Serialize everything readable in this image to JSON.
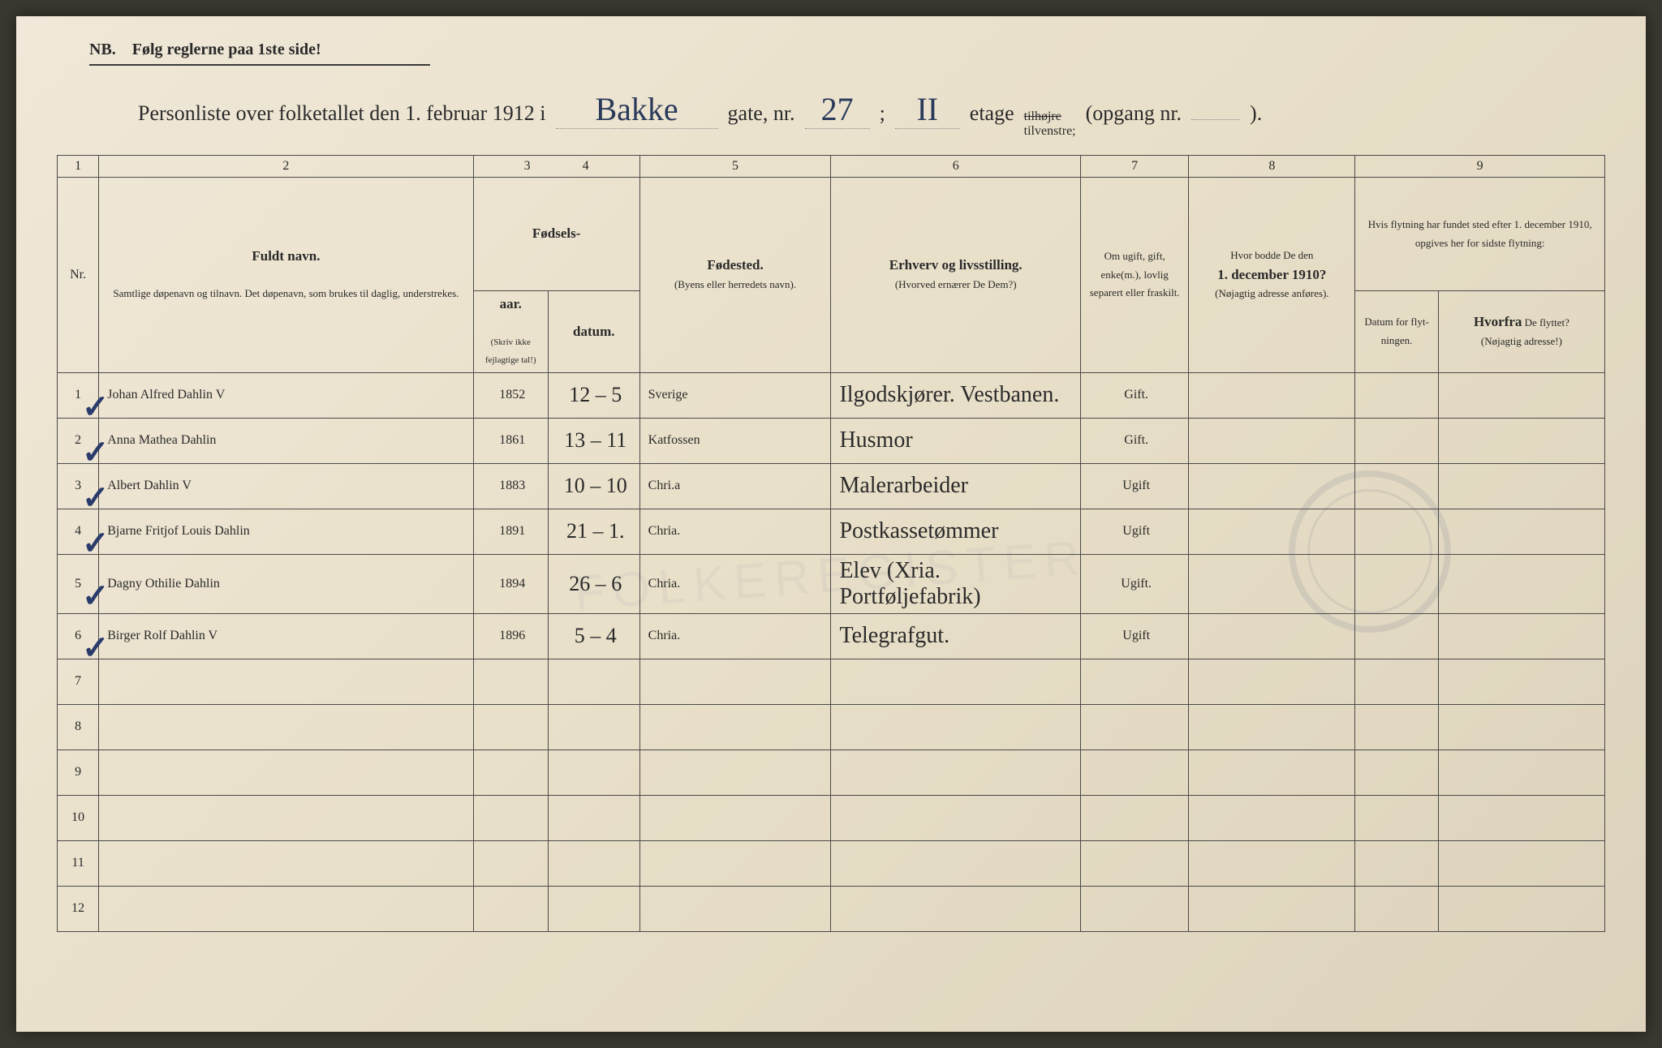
{
  "nb_text": "NB. Følg reglerne paa 1ste side!",
  "title": {
    "prefix": "Personliste over folketallet den 1. februar 1912 i",
    "street": "Bakke",
    "gate_label": "gate, nr.",
    "gate_nr": "27",
    "sep": ";",
    "etage_val": "II",
    "etage_label": "etage",
    "side_strike": "tilhøjre",
    "side_keep": "tilvenstre;",
    "opgang": "(opgang nr.",
    "opgang_val": "",
    "opgang_end": ")."
  },
  "header_nums": [
    "1",
    "2",
    "3",
    "4",
    "5",
    "6",
    "7",
    "8",
    "9"
  ],
  "headers": {
    "nr": "Nr.",
    "name_title": "Fuldt navn.",
    "name_sub": "Samtlige døpenavn og tilnavn. Det døpenavn, som brukes til daglig, understrekes.",
    "birth_title": "Fødsels-",
    "year": "aar.",
    "date": "datum.",
    "birth_note": "(Skriv ikke fejlagtige tal!)",
    "place_title": "Fødested.",
    "place_sub": "(Byens eller herredets navn).",
    "occ_title": "Erhverv og livsstilling.",
    "occ_sub": "(Hvorved ernærer De Dem?)",
    "marital": "Om ugift, gift, enke(m.), lovlig separert eller fraskilt.",
    "addr_title": "Hvor bodde De den",
    "addr_date": "1. december 1910?",
    "addr_sub": "(Nøjagtig adresse anføres).",
    "move_title": "Hvis flytning har fundet sted efter 1. december 1910, opgives her for sidste flytning:",
    "move_date": "Datum for flyt-ningen.",
    "move_from_title": "Hvorfra",
    "move_from_rest": " De flyttet?",
    "move_from_sub": "(Nøjagtig adresse!)"
  },
  "rows": [
    {
      "nr": "1",
      "check": "✓",
      "name": "Johan Alfred Dahlin   V",
      "year": "1852",
      "date": "12 – 5",
      "place": "Sverige",
      "occ": "Ilgodskjører. Vestbanen.",
      "marital": "Gift."
    },
    {
      "nr": "2",
      "check": "✓",
      "name": "Anna Mathea Dahlin",
      "year": "1861",
      "date": "13 – 11",
      "place": "Katfossen",
      "occ": "Husmor",
      "marital": "Gift."
    },
    {
      "nr": "3",
      "check": "✓",
      "name": "Albert Dahlin   V",
      "year": "1883",
      "date": "10 – 10",
      "place": "Chri.a",
      "occ": "Malerarbeider",
      "marital": "Ugift"
    },
    {
      "nr": "4",
      "check": "✓",
      "name": "Bjarne Fritjof Louis Dahlin",
      "year": "1891",
      "date": "21 – 1.",
      "place": "Chria.",
      "occ": "Postkassetømmer",
      "marital": "Ugift"
    },
    {
      "nr": "5",
      "check": "✓",
      "name": "Dagny Othilie Dahlin",
      "year": "1894",
      "date": "26 – 6",
      "place": "Chria.",
      "occ": "Elev (Xria. Portføljefabrik)",
      "marital": "Ugift."
    },
    {
      "nr": "6",
      "check": "✓",
      "name": "Birger Rolf Dahlin   V",
      "year": "1896",
      "date": "5 – 4",
      "place": "Chria.",
      "occ": "Telegrafgut.",
      "marital": "Ugift"
    },
    {
      "nr": "7",
      "check": "",
      "name": "",
      "year": "",
      "date": "",
      "place": "",
      "occ": "",
      "marital": ""
    },
    {
      "nr": "8",
      "check": "",
      "name": "",
      "year": "",
      "date": "",
      "place": "",
      "occ": "",
      "marital": ""
    },
    {
      "nr": "9",
      "check": "",
      "name": "",
      "year": "",
      "date": "",
      "place": "",
      "occ": "",
      "marital": ""
    },
    {
      "nr": "10",
      "check": "",
      "name": "",
      "year": "",
      "date": "",
      "place": "",
      "occ": "",
      "marital": ""
    },
    {
      "nr": "11",
      "check": "",
      "name": "",
      "year": "",
      "date": "",
      "place": "",
      "occ": "",
      "marital": ""
    },
    {
      "nr": "12",
      "check": "",
      "name": "",
      "year": "",
      "date": "",
      "place": "",
      "occ": "",
      "marital": ""
    }
  ],
  "colors": {
    "paper": "#e8dfc8",
    "ink_print": "#2a2a2a",
    "ink_hand": "#1a2a4a",
    "border": "#4a4a4a"
  }
}
